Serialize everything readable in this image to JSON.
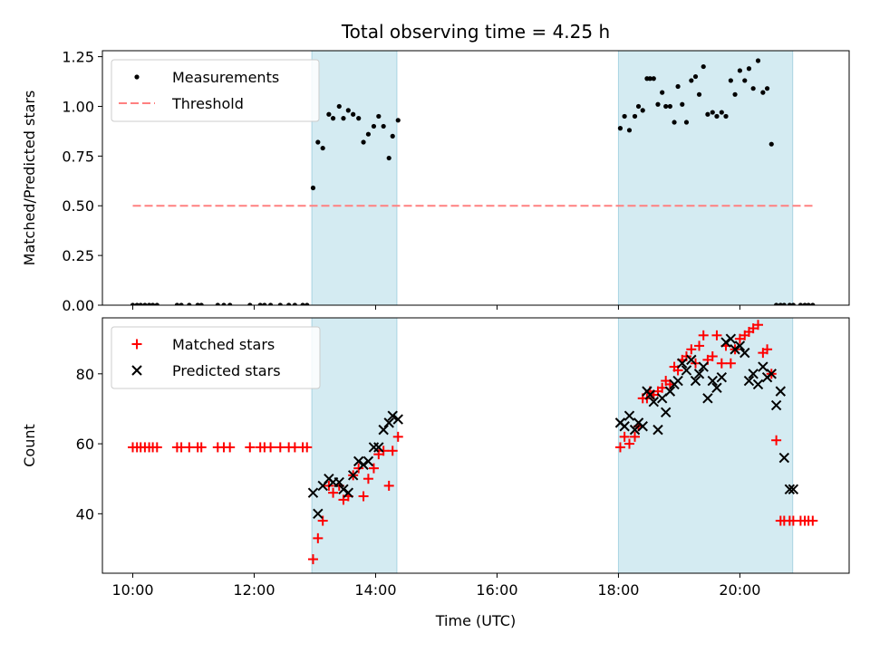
{
  "chart_data": {
    "title": "Total observing time = 4.25 h",
    "xlabel": "Time (UTC)",
    "xlim": [
      9.5,
      21.8
    ],
    "xticks": [
      10,
      12,
      14,
      16,
      18,
      20
    ],
    "xtick_labels": [
      "10:00",
      "12:00",
      "14:00",
      "16:00",
      "18:00",
      "20:00"
    ],
    "shaded_regions": [
      [
        12.95,
        14.35
      ],
      [
        18.0,
        20.87
      ]
    ],
    "shade_color": "#d4ebf2",
    "panels": [
      {
        "type": "scatter",
        "ylabel": "Matched/Predicted stars",
        "ylim": [
          0,
          1.28
        ],
        "yticks": [
          0,
          0.25,
          0.5,
          0.75,
          1.0,
          1.25
        ],
        "ytick_labels": [
          "0.00",
          "0.25",
          "0.50",
          "0.75",
          "1.00",
          "1.25"
        ],
        "legend": {
          "position": "top-left",
          "entries": [
            "Measurements",
            "Threshold"
          ]
        },
        "threshold": {
          "name": "Threshold",
          "value": 0.5,
          "x_range": [
            10.0,
            21.2
          ],
          "color": "#ff8080"
        },
        "series": [
          {
            "name": "Measurements",
            "color": "#000000",
            "marker": "dot",
            "x": [
              10.0,
              10.07,
              10.13,
              10.2,
              10.27,
              10.33,
              10.4,
              10.73,
              10.8,
              10.93,
              11.07,
              11.13,
              11.4,
              11.5,
              11.6,
              11.93,
              12.1,
              12.17,
              12.27,
              12.43,
              12.57,
              12.67,
              12.8,
              12.87,
              12.97,
              13.05,
              13.13,
              13.23,
              13.3,
              13.4,
              13.47,
              13.55,
              13.63,
              13.72,
              13.8,
              13.88,
              13.97,
              14.05,
              14.13,
              14.22,
              14.28,
              14.37,
              18.03,
              18.1,
              18.18,
              18.27,
              18.33,
              18.4,
              18.47,
              18.52,
              18.58,
              18.65,
              18.72,
              18.78,
              18.85,
              18.92,
              18.98,
              19.05,
              19.12,
              19.2,
              19.27,
              19.33,
              19.4,
              19.47,
              19.55,
              19.62,
              19.7,
              19.77,
              19.85,
              19.92,
              20.0,
              20.08,
              20.15,
              20.22,
              20.3,
              20.38,
              20.45,
              20.52,
              20.6,
              20.67,
              20.73,
              20.82,
              20.88,
              21.0,
              21.07,
              21.13,
              21.2
            ],
            "y": [
              0,
              0,
              0,
              0,
              0,
              0,
              0,
              0,
              0,
              0,
              0,
              0,
              0,
              0,
              0,
              0,
              0,
              0,
              0,
              0,
              0,
              0,
              0,
              0,
              0.59,
              0.82,
              0.79,
              0.96,
              0.94,
              1.0,
              0.94,
              0.98,
              0.96,
              0.94,
              0.82,
              0.86,
              0.9,
              0.95,
              0.9,
              0.74,
              0.85,
              0.93,
              0.89,
              0.95,
              0.88,
              0.95,
              1.0,
              0.98,
              1.14,
              1.14,
              1.14,
              1.01,
              1.07,
              1.0,
              1.0,
              0.92,
              1.1,
              1.01,
              0.92,
              1.13,
              1.15,
              1.06,
              1.2,
              0.96,
              0.97,
              0.95,
              0.97,
              0.95,
              1.13,
              1.06,
              1.18,
              1.13,
              1.19,
              1.09,
              1.23,
              1.07,
              1.09,
              0.81,
              0,
              0,
              0,
              0,
              0,
              0,
              0,
              0,
              0
            ]
          }
        ]
      },
      {
        "type": "scatter",
        "ylabel": "Count",
        "ylim": [
          23,
          96
        ],
        "yticks": [
          40,
          60,
          80
        ],
        "ytick_labels": [
          "40",
          "60",
          "80"
        ],
        "legend": {
          "position": "top-left",
          "entries": [
            "Matched stars",
            "Predicted stars"
          ]
        },
        "series": [
          {
            "name": "Matched stars",
            "color": "#ff0000",
            "marker": "plus",
            "x": [
              10.0,
              10.07,
              10.13,
              10.2,
              10.27,
              10.33,
              10.4,
              10.73,
              10.8,
              10.93,
              11.07,
              11.13,
              11.4,
              11.5,
              11.6,
              11.93,
              12.1,
              12.17,
              12.27,
              12.43,
              12.57,
              12.67,
              12.8,
              12.87,
              12.97,
              13.05,
              13.13,
              13.23,
              13.3,
              13.4,
              13.47,
              13.55,
              13.63,
              13.72,
              13.8,
              13.88,
              13.97,
              14.05,
              14.13,
              14.22,
              14.28,
              14.37,
              18.03,
              18.1,
              18.18,
              18.27,
              18.33,
              18.4,
              18.47,
              18.52,
              18.58,
              18.65,
              18.72,
              18.78,
              18.85,
              18.92,
              18.98,
              19.05,
              19.12,
              19.2,
              19.27,
              19.33,
              19.4,
              19.47,
              19.55,
              19.62,
              19.7,
              19.77,
              19.85,
              19.92,
              20.0,
              20.08,
              20.15,
              20.22,
              20.3,
              20.38,
              20.45,
              20.52,
              20.6,
              20.67,
              20.73,
              20.82,
              20.88,
              21.0,
              21.07,
              21.13,
              21.2
            ],
            "y": [
              59,
              59,
              59,
              59,
              59,
              59,
              59,
              59,
              59,
              59,
              59,
              59,
              59,
              59,
              59,
              59,
              59,
              59,
              59,
              59,
              59,
              59,
              59,
              59,
              27,
              33,
              38,
              48,
              46,
              48,
              44,
              45,
              51,
              53,
              45,
              50,
              53,
              57,
              58,
              48,
              58,
              62,
              59,
              62,
              60,
              62,
              65,
              73,
              73,
              75,
              74,
              75,
              76,
              78,
              77,
              82,
              81,
              84,
              85,
              87,
              83,
              88,
              91,
              84,
              85,
              91,
              83,
              88,
              83,
              87,
              90,
              91,
              92,
              93,
              94,
              86,
              87,
              80,
              61,
              38,
              38,
              38,
              38,
              38,
              38,
              38,
              38
            ]
          },
          {
            "name": "Predicted stars",
            "color": "#000000",
            "marker": "x",
            "x": [
              12.97,
              13.05,
              13.13,
              13.23,
              13.3,
              13.4,
              13.47,
              13.55,
              13.63,
              13.72,
              13.8,
              13.88,
              13.97,
              14.05,
              14.13,
              14.22,
              14.28,
              14.37,
              18.03,
              18.1,
              18.18,
              18.27,
              18.33,
              18.4,
              18.47,
              18.52,
              18.58,
              18.65,
              18.72,
              18.78,
              18.85,
              18.92,
              18.98,
              19.05,
              19.12,
              19.2,
              19.27,
              19.33,
              19.4,
              19.47,
              19.55,
              19.62,
              19.7,
              19.77,
              19.85,
              19.92,
              20.0,
              20.08,
              20.15,
              20.22,
              20.3,
              20.38,
              20.45,
              20.52,
              20.6,
              20.67,
              20.73,
              20.82,
              20.88
            ],
            "y": [
              46,
              40,
              48,
              50,
              49,
              49,
              47,
              46,
              51,
              55,
              54,
              55,
              59,
              59,
              64,
              66,
              68,
              67,
              66,
              65,
              68,
              64,
              66,
              65,
              75,
              74,
              72,
              64,
              73,
              69,
              75,
              77,
              78,
              83,
              81,
              84,
              78,
              80,
              82,
              73,
              78,
              76,
              79,
              89,
              90,
              87,
              88,
              86,
              78,
              80,
              77,
              82,
              79,
              80,
              71,
              75,
              56,
              47,
              47
            ]
          }
        ]
      }
    ]
  }
}
